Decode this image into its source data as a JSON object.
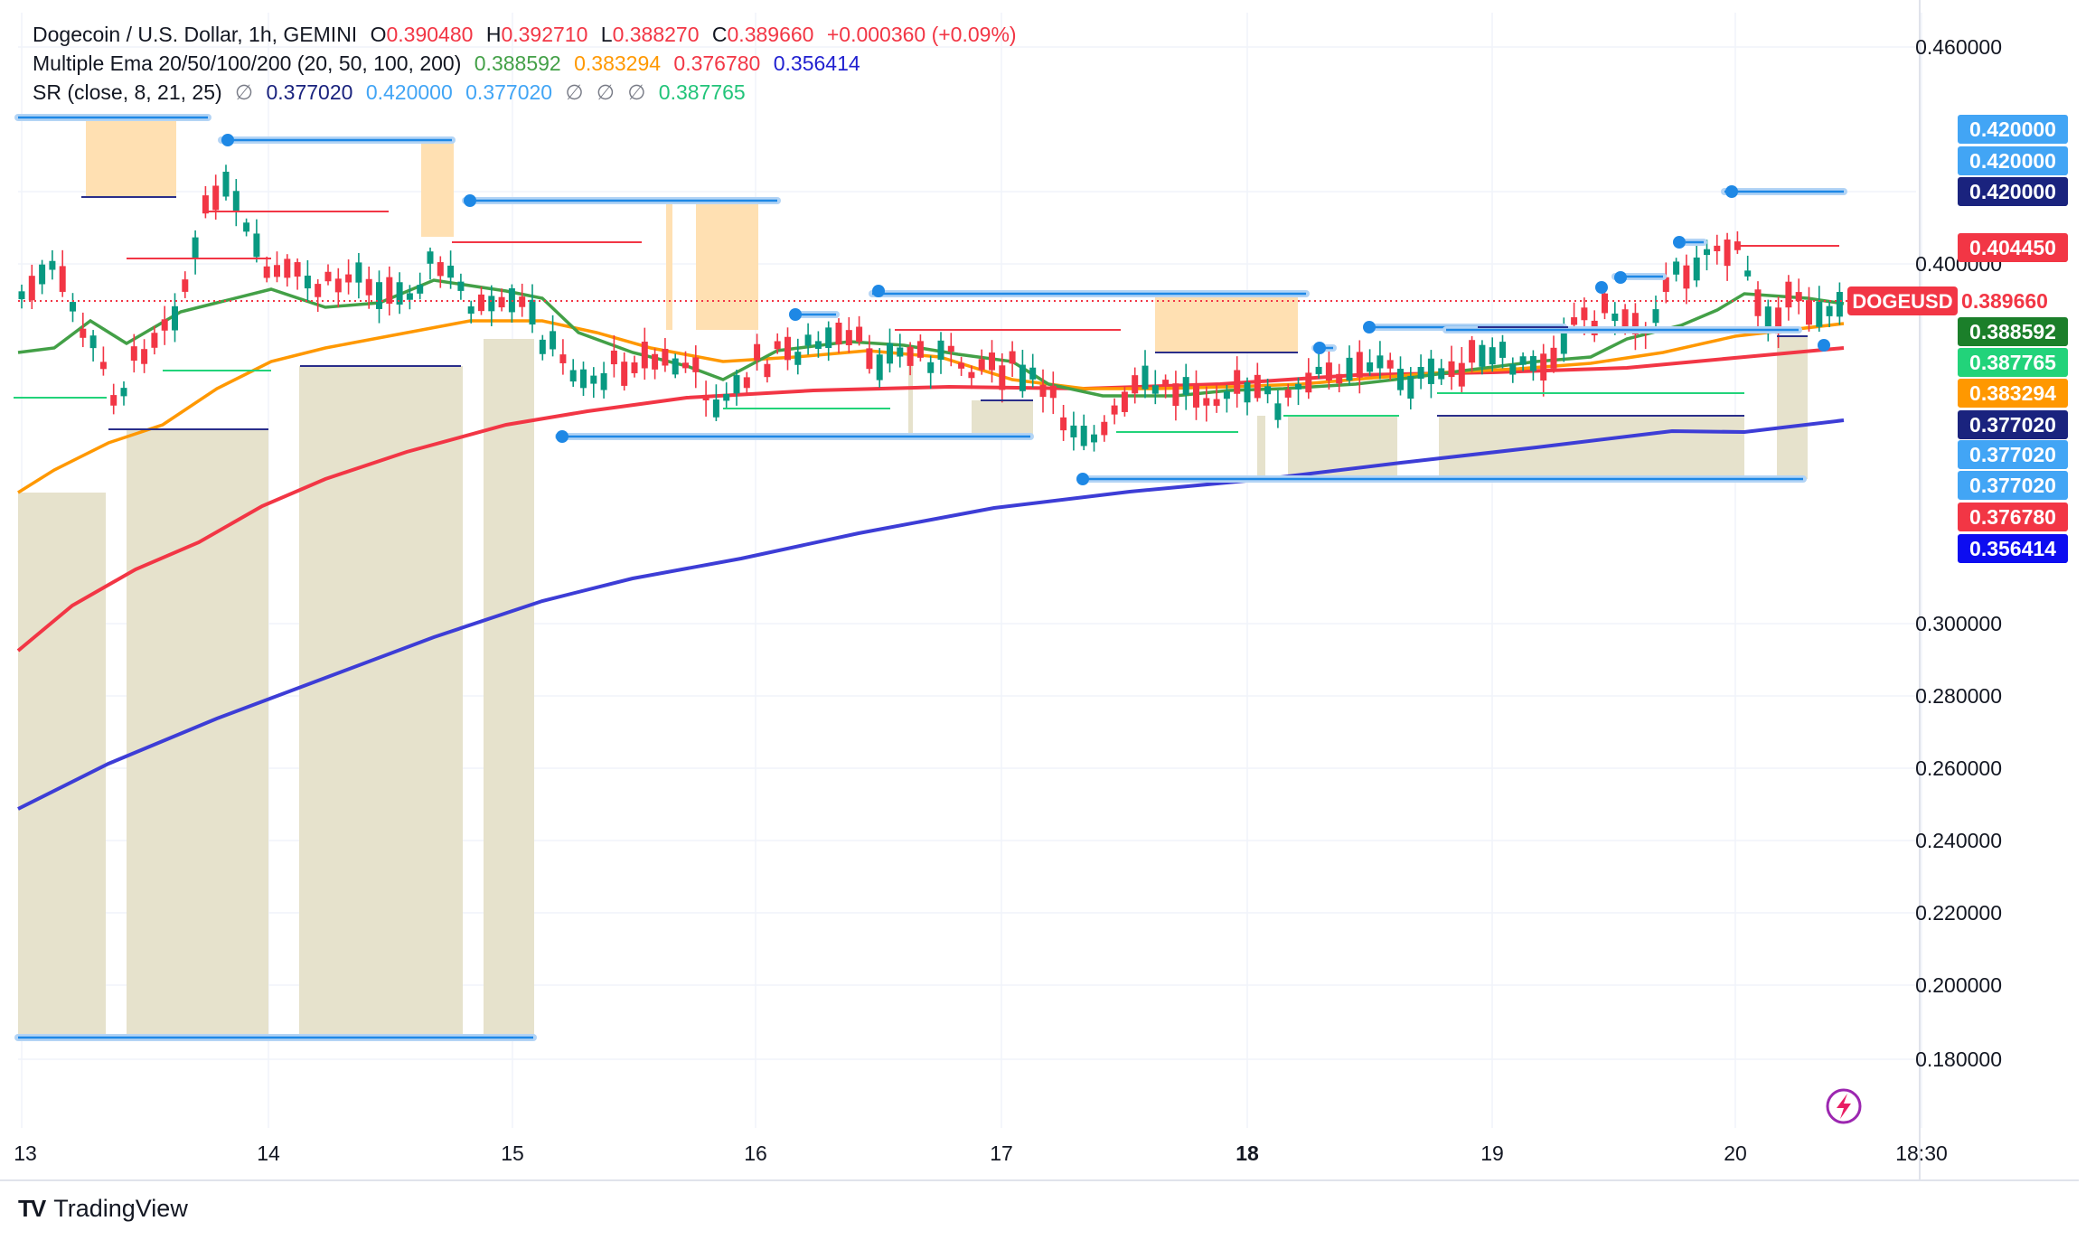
{
  "header": {
    "symbol_title": "Dogecoin / U.S. Dollar, 1h, GEMINI",
    "ohlc": [
      {
        "label": "O",
        "value": "0.390480"
      },
      {
        "label": "H",
        "value": "0.392710"
      },
      {
        "label": "L",
        "value": "0.388270"
      },
      {
        "label": "C",
        "value": "0.389660"
      }
    ],
    "change": "+0.000360 (+0.09%)",
    "ema_title": "Multiple Ema 20/50/100/200 (20, 50, 100, 200)",
    "ema_values": [
      "0.388592",
      "0.383294",
      "0.376780",
      "0.356414"
    ],
    "sr_title": "SR (close, 8, 21, 25)",
    "sr_values": [
      "∅",
      "0.377020",
      "0.420000",
      "0.377020",
      "∅",
      "∅",
      "∅",
      "0.387765"
    ]
  },
  "branding": {
    "logo_text": "TradingView",
    "logo_mark": "TV"
  },
  "colors": {
    "up": "#089981",
    "down": "#f23645",
    "ema20": "#43a047",
    "ema50": "#ff9800",
    "ema100": "#f23645",
    "ema200": "#3d3dd6",
    "sr_line": "#1e88e5",
    "sr_halo": "#b3d4f5",
    "zone_orange": "#ffe0b2",
    "zone_olive": "#e6e2cc",
    "text_gray": "#131722",
    "grid": "#f0f3fa"
  },
  "chart_data": {
    "type": "candlestick",
    "symbol": "DOGEUSD",
    "interval": "1h",
    "x_labels": [
      "13",
      "14",
      "15",
      "16",
      "17",
      "18",
      "19",
      "20",
      "18:30"
    ],
    "y_ticks": [
      "0.460000",
      "0.400000",
      "0.300000",
      "0.280000",
      "0.260000",
      "0.240000",
      "0.220000",
      "0.200000",
      "0.180000"
    ],
    "ylim": [
      0.18,
      0.46
    ],
    "price_labels": [
      {
        "text": "0.420000",
        "value": 0.42,
        "style": "sr",
        "bg": "#42a5f5"
      },
      {
        "text": "0.420000",
        "value": 0.42,
        "style": "sr",
        "bg": "#42a5f5",
        "offset": 1
      },
      {
        "text": "0.420000",
        "value": 0.42,
        "style": "sr",
        "bg": "#1a237e",
        "offset": 2
      },
      {
        "text": "0.404450",
        "value": 0.40445,
        "style": "sr",
        "bg": "#f23645"
      },
      {
        "text": "DOGEUSD",
        "value": 0.38966,
        "style": "name",
        "bg": "#f23645"
      },
      {
        "text": "0.389660",
        "value": 0.38966,
        "style": "price",
        "bg": "#ffffff",
        "fg": "#f23645"
      },
      {
        "text": "0.388592",
        "value": 0.388592,
        "style": "ema",
        "bg": "#1b7f2a"
      },
      {
        "text": "0.387765",
        "value": 0.387765,
        "style": "ema",
        "bg": "#22d37a"
      },
      {
        "text": "0.383294",
        "value": 0.383294,
        "style": "ema",
        "bg": "#ff9800"
      },
      {
        "text": "0.377020",
        "value": 0.37702,
        "style": "sr",
        "bg": "#1a237e"
      },
      {
        "text": "0.377020",
        "value": 0.37702,
        "style": "sr",
        "bg": "#42a5f5",
        "offset": 1
      },
      {
        "text": "0.377020",
        "value": 0.37702,
        "style": "sr",
        "bg": "#42a5f5",
        "offset": 2
      },
      {
        "text": "0.376780",
        "value": 0.37678,
        "style": "ema",
        "bg": "#f23645"
      },
      {
        "text": "0.356414",
        "value": 0.356414,
        "style": "ema",
        "bg": "#0d0df0"
      }
    ],
    "emas": [
      {
        "name": "EMA 20",
        "last": 0.388592
      },
      {
        "name": "EMA 50",
        "last": 0.383294
      },
      {
        "name": "EMA 100",
        "last": 0.37678
      },
      {
        "name": "EMA 200",
        "last": 0.356414
      }
    ],
    "last_price": 0.38966,
    "sr_levels": [
      0.42,
      0.40445,
      0.387765,
      0.37702
    ]
  }
}
